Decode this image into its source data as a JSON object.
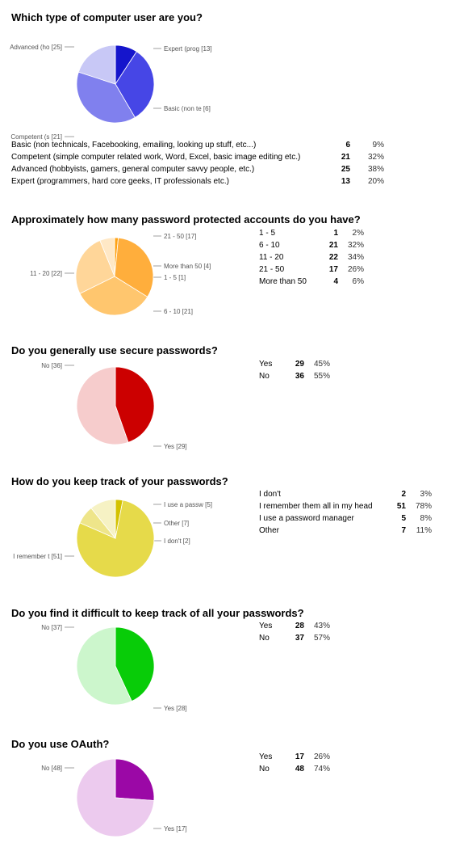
{
  "chart_data": [
    {
      "type": "pie",
      "title": "Which type of computer user are you?",
      "slices": [
        {
          "name": "Basic (non technicals, Facebooking, emailing, looking up stuff, etc...)",
          "label": "Basic (non te [6]",
          "value": 6,
          "percent": "9%",
          "color": "#1515cc"
        },
        {
          "name": "Competent (simple computer related work, Word, Excel, basic image editing etc.)",
          "label": "Competent (s [21]",
          "value": 21,
          "percent": "32%",
          "color": "#4646e6"
        },
        {
          "name": "Advanced (hobbyists, gamers, general computer savvy people, etc.)",
          "label": "Advanced (ho [25]",
          "value": 25,
          "percent": "38%",
          "color": "#8080ee"
        },
        {
          "name": "Expert (programmers, hard core geeks, IT professionals etc.)",
          "label": "Expert (prog [13]",
          "value": 13,
          "percent": "20%",
          "color": "#c8c8f6"
        }
      ]
    },
    {
      "type": "pie",
      "title": "Approximately how many password protected accounts do you have?",
      "slices": [
        {
          "name": "1 - 5",
          "label": "1 - 5 [1]",
          "value": 1,
          "percent": "2%",
          "color": "#ffa317"
        },
        {
          "name": "6 - 10",
          "label": "6 - 10 [21]",
          "value": 21,
          "percent": "32%",
          "color": "#ffae3c"
        },
        {
          "name": "11 - 20",
          "label": "11 - 20 [22]",
          "value": 22,
          "percent": "34%",
          "color": "#ffc66e"
        },
        {
          "name": "21 - 50",
          "label": "21 - 50 [17]",
          "value": 17,
          "percent": "26%",
          "color": "#ffd699"
        },
        {
          "name": "More than 50",
          "label": "More than 50 [4]",
          "value": 4,
          "percent": "6%",
          "color": "#ffe8c6"
        }
      ]
    },
    {
      "type": "pie",
      "title": "Do you generally use secure passwords?",
      "slices": [
        {
          "name": "Yes",
          "label": "Yes [29]",
          "value": 29,
          "percent": "45%",
          "color": "#cc0000"
        },
        {
          "name": "No",
          "label": "No [36]",
          "value": 36,
          "percent": "55%",
          "color": "#f6cccc"
        }
      ]
    },
    {
      "type": "pie",
      "title": "How do you keep track of your passwords?",
      "slices": [
        {
          "name": "I don't",
          "label": "I don't [2]",
          "value": 2,
          "percent": "3%",
          "color": "#d4c200"
        },
        {
          "name": "I remember them all in my head",
          "label": "I remember t [51]",
          "value": 51,
          "percent": "78%",
          "color": "#e6da4a"
        },
        {
          "name": "I use a password manager",
          "label": "I use a passw [5]",
          "value": 5,
          "percent": "8%",
          "color": "#eee58a"
        },
        {
          "name": "Other",
          "label": "Other [7]",
          "value": 7,
          "percent": "11%",
          "color": "#f6f2c4"
        }
      ]
    },
    {
      "type": "pie",
      "title": "Do you find it difficult to keep track of all your passwords?",
      "slices": [
        {
          "name": "Yes",
          "label": "Yes [28]",
          "value": 28,
          "percent": "43%",
          "color": "#08cc08"
        },
        {
          "name": "No",
          "label": "No [37]",
          "value": 37,
          "percent": "57%",
          "color": "#ccf6cc"
        }
      ]
    },
    {
      "type": "pie",
      "title": "Do you use OAuth?",
      "slices": [
        {
          "name": "Yes",
          "label": "Yes [17]",
          "value": 17,
          "percent": "26%",
          "color": "#9b08a6"
        },
        {
          "name": "No",
          "label": "No [48]",
          "value": 48,
          "percent": "74%",
          "color": "#eccaee"
        }
      ]
    }
  ]
}
